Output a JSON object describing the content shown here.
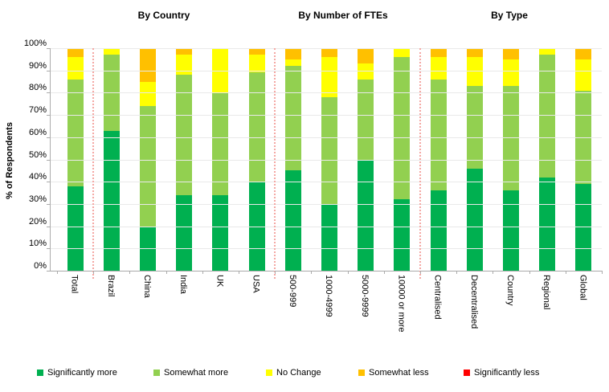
{
  "section_headers": {
    "country": "By Country",
    "ftes": "By Number of FTEs",
    "type": "By Type"
  },
  "chart_data": {
    "type": "bar",
    "stacked": true,
    "ylabel": "% of Respondents",
    "ylim": [
      0,
      100
    ],
    "grid": true,
    "legend_position": "bottom",
    "yticks": [
      "0%",
      "10%",
      "20%",
      "30%",
      "40%",
      "50%",
      "60%",
      "70%",
      "80%",
      "90%",
      "100%"
    ],
    "categories": [
      "Total",
      "Brazil",
      "China",
      "India",
      "UK",
      "USA",
      "500-999",
      "1000-4999",
      "5000-9999",
      "10000 or more",
      "Centralised",
      "Decentralised",
      "Country",
      "Regional",
      "Global"
    ],
    "groups": [
      {
        "label": "By Country",
        "categories": [
          "Brazil",
          "China",
          "India",
          "UK",
          "USA"
        ]
      },
      {
        "label": "By Number of FTEs",
        "categories": [
          "500-999",
          "1000-4999",
          "5000-9999",
          "10000 or more"
        ]
      },
      {
        "label": "By Type",
        "categories": [
          "Centralised",
          "Decentralised",
          "Country",
          "Regional",
          "Global"
        ]
      }
    ],
    "separators_after_category_index": [
      0,
      5,
      9
    ],
    "series": [
      {
        "name": "Significantly more",
        "color": "#00B050",
        "values": [
          38,
          63,
          20,
          34,
          34,
          40,
          45,
          30,
          50,
          32,
          36,
          46,
          36,
          42,
          39
        ]
      },
      {
        "name": "Somewhat more",
        "color": "#92D050",
        "values": [
          48,
          34,
          54,
          54,
          46,
          49,
          47,
          48,
          36,
          64,
          50,
          37,
          47,
          55,
          42
        ]
      },
      {
        "name": "No Change",
        "color": "#FFFF00",
        "values": [
          10,
          3,
          11,
          9,
          20,
          8,
          3,
          18,
          7,
          4,
          10,
          13,
          12,
          3,
          14
        ]
      },
      {
        "name": "Somewhat less",
        "color": "#FFC000",
        "values": [
          4,
          0,
          15,
          3,
          0,
          3,
          5,
          4,
          7,
          0,
          4,
          4,
          5,
          0,
          5
        ]
      },
      {
        "name": "Significantly less",
        "color": "#FF0000",
        "values": [
          0,
          0,
          0,
          0,
          0,
          0,
          0,
          0,
          0,
          0,
          0,
          0,
          0,
          0,
          0
        ]
      }
    ],
    "style": {
      "separator_color": "#F4A7A3",
      "axis_color": "#ABABAB",
      "gridline_color": "#E9E9E9",
      "background": "#FFFFFF"
    }
  },
  "legend_item_lefts": [
    46,
    191,
    331,
    446,
    577
  ]
}
